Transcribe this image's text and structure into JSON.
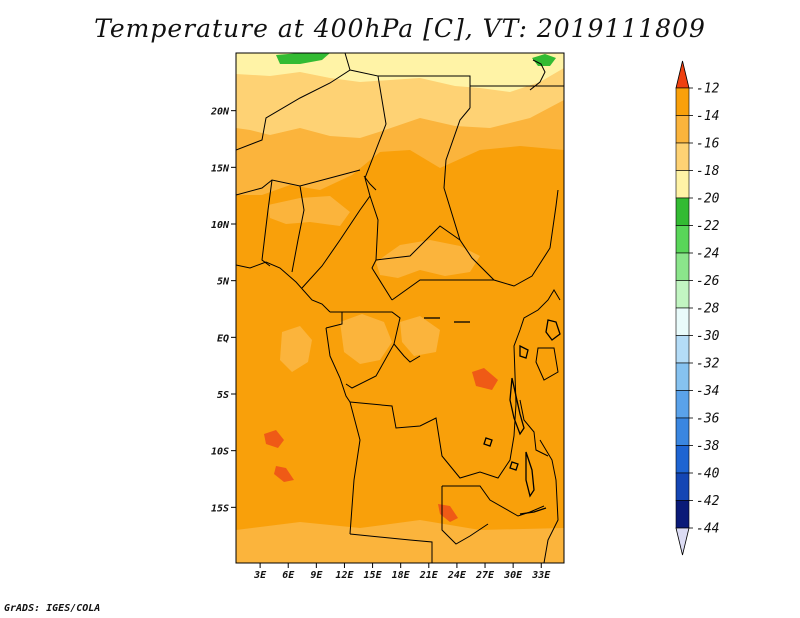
{
  "title": "Temperature at 400hPa [C], VT: 2019111809",
  "credit": "GrADS: IGES/COLA",
  "map": {
    "lon_range": [
      0,
      35
    ],
    "lat_range": [
      -20,
      25
    ],
    "lat_ticks": [
      {
        "value": 20,
        "label": "20N"
      },
      {
        "value": 15,
        "label": "15N"
      },
      {
        "value": 10,
        "label": "10N"
      },
      {
        "value": 5,
        "label": "5N"
      },
      {
        "value": 0,
        "label": "EQ"
      },
      {
        "value": -5,
        "label": "5S"
      },
      {
        "value": -10,
        "label": "10S"
      },
      {
        "value": -15,
        "label": "15S"
      }
    ],
    "lon_ticks": [
      {
        "value": 3,
        "label": "3E"
      },
      {
        "value": 6,
        "label": "6E"
      },
      {
        "value": 9,
        "label": "9E"
      },
      {
        "value": 12,
        "label": "12E"
      },
      {
        "value": 15,
        "label": "15E"
      },
      {
        "value": 18,
        "label": "18E"
      },
      {
        "value": 21,
        "label": "21E"
      },
      {
        "value": 24,
        "label": "24E"
      },
      {
        "value": 27,
        "label": "27E"
      },
      {
        "value": 30,
        "label": "30E"
      },
      {
        "value": 33,
        "label": "33E"
      }
    ],
    "base_color": "#f9a00a"
  },
  "colorbar": {
    "levels": [
      {
        "label": "-12",
        "color": "#ef5a16"
      },
      {
        "label": "-14",
        "color": "#f9a00a"
      },
      {
        "label": "-16",
        "color": "#fbb43c"
      },
      {
        "label": "-18",
        "color": "#fed274"
      },
      {
        "label": "-20",
        "color": "#fff3a6"
      },
      {
        "label": "-22",
        "color": "#33bb33"
      },
      {
        "label": "-24",
        "color": "#59d659"
      },
      {
        "label": "-26",
        "color": "#8be58b"
      },
      {
        "label": "-28",
        "color": "#c2f5c2"
      },
      {
        "label": "-30",
        "color": "#e9fbfb"
      },
      {
        "label": "-32",
        "color": "#b4dcf7"
      },
      {
        "label": "-34",
        "color": "#86c2f0"
      },
      {
        "label": "-36",
        "color": "#5aa2ea"
      },
      {
        "label": "-38",
        "color": "#3a86e0"
      },
      {
        "label": "-40",
        "color": "#1e64d2"
      },
      {
        "label": "-42",
        "color": "#1446b4"
      },
      {
        "label": "-44",
        "color": "#0a1a78"
      }
    ],
    "top_arrow_color": "#ef4010",
    "bottom_arrow_color": "#dcdcf4"
  }
}
